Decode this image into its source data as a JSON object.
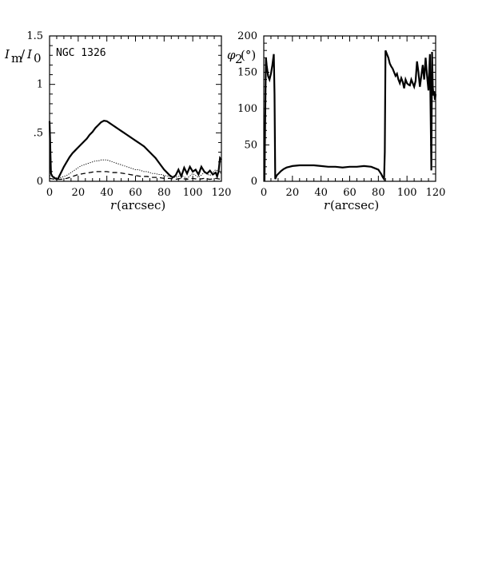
{
  "chart_data": [
    {
      "type": "line",
      "annotation": "NGC 1326",
      "ylabel_main": "I",
      "ylabel_sub_m": "m",
      "ylabel_slash": "/",
      "ylabel_sub_0": "0",
      "xlabel_var": "r",
      "xlabel_unit": "(arcsec)",
      "xlim": [
        0,
        120
      ],
      "ylim": [
        0,
        1.5
      ],
      "xticks": [
        0,
        20,
        40,
        60,
        80,
        100,
        120
      ],
      "xtick_labels": [
        "0",
        "20",
        "40",
        "60",
        "80",
        "100",
        "120"
      ],
      "yticks": [
        0,
        0.5,
        1,
        1.5
      ],
      "ytick_labels": [
        "0",
        ".5",
        "1",
        "1.5"
      ],
      "series": [
        {
          "style": "solid-thick",
          "x": [
            0,
            1,
            2,
            3,
            4,
            5,
            6,
            7,
            8,
            10,
            12,
            14,
            16,
            18,
            20,
            22,
            24,
            26,
            28,
            30,
            32,
            34,
            36,
            38,
            40,
            42,
            44,
            46,
            48,
            50,
            52,
            54,
            56,
            58,
            60,
            62,
            64,
            66,
            68,
            70,
            72,
            74,
            76,
            78,
            80,
            82,
            84,
            86,
            88,
            90,
            92,
            94,
            96,
            98,
            100,
            102,
            104,
            106,
            108,
            110,
            112,
            114,
            116,
            117,
            118,
            119,
            120
          ],
          "y": [
            0.62,
            0.08,
            0.05,
            0.04,
            0.03,
            0.02,
            0.03,
            0.06,
            0.09,
            0.15,
            0.2,
            0.25,
            0.29,
            0.32,
            0.35,
            0.38,
            0.41,
            0.44,
            0.48,
            0.51,
            0.55,
            0.58,
            0.61,
            0.625,
            0.62,
            0.6,
            0.58,
            0.56,
            0.54,
            0.52,
            0.5,
            0.48,
            0.46,
            0.44,
            0.42,
            0.4,
            0.38,
            0.36,
            0.33,
            0.3,
            0.27,
            0.24,
            0.2,
            0.16,
            0.12,
            0.09,
            0.06,
            0.04,
            0.06,
            0.12,
            0.05,
            0.14,
            0.08,
            0.15,
            0.1,
            0.12,
            0.07,
            0.15,
            0.1,
            0.08,
            0.11,
            0.07,
            0.09,
            0.05,
            0.1,
            0.24,
            0.22
          ]
        },
        {
          "style": "dotted",
          "x": [
            0,
            2,
            4,
            6,
            8,
            10,
            12,
            14,
            16,
            18,
            20,
            22,
            24,
            26,
            28,
            30,
            32,
            34,
            36,
            38,
            40,
            42,
            44,
            46,
            48,
            50,
            52,
            54,
            56,
            58,
            60,
            62,
            64,
            66,
            68,
            70,
            72,
            74,
            76,
            78,
            80,
            84,
            88,
            92,
            96,
            100,
            104,
            108,
            112,
            116,
            120
          ],
          "y": [
            0.06,
            0.05,
            0.04,
            0.03,
            0.04,
            0.05,
            0.06,
            0.08,
            0.1,
            0.12,
            0.14,
            0.16,
            0.17,
            0.18,
            0.19,
            0.2,
            0.21,
            0.21,
            0.22,
            0.22,
            0.22,
            0.21,
            0.2,
            0.19,
            0.18,
            0.17,
            0.16,
            0.15,
            0.14,
            0.13,
            0.12,
            0.12,
            0.11,
            0.1,
            0.1,
            0.09,
            0.08,
            0.08,
            0.07,
            0.07,
            0.06,
            0.05,
            0.04,
            0.06,
            0.03,
            0.08,
            0.04,
            0.09,
            0.06,
            0.12,
            0.08
          ]
        },
        {
          "style": "dashed",
          "x": [
            0,
            4,
            8,
            12,
            16,
            20,
            24,
            28,
            32,
            36,
            40,
            44,
            48,
            52,
            56,
            60,
            64,
            68,
            72,
            76,
            80,
            84,
            88,
            92,
            96,
            100,
            104,
            108,
            112,
            116,
            120
          ],
          "y": [
            0.03,
            0.02,
            0.02,
            0.03,
            0.05,
            0.07,
            0.08,
            0.09,
            0.1,
            0.1,
            0.1,
            0.09,
            0.09,
            0.08,
            0.07,
            0.06,
            0.05,
            0.05,
            0.04,
            0.04,
            0.03,
            0.03,
            0.02,
            0.03,
            0.02,
            0.03,
            0.02,
            0.03,
            0.02,
            0.03,
            0.02
          ]
        }
      ]
    },
    {
      "type": "line",
      "ylabel_var": "φ",
      "ylabel_sub": "2",
      "ylabel_unit": "(°)",
      "xlabel_var": "r",
      "xlabel_unit": "(arcsec)",
      "xlim": [
        0,
        120
      ],
      "ylim": [
        0,
        200
      ],
      "xticks": [
        0,
        20,
        40,
        60,
        80,
        100,
        120
      ],
      "xtick_labels": [
        "0",
        "20",
        "40",
        "60",
        "80",
        "100",
        "120"
      ],
      "yticks": [
        0,
        50,
        100,
        150,
        200
      ],
      "ytick_labels": [
        "0",
        "50",
        "100",
        "150",
        "200"
      ],
      "series": [
        {
          "style": "solid-thick",
          "x": [
            0.5,
            1,
            1.5,
            2,
            3,
            4,
            5,
            6,
            7,
            7.5,
            8,
            9,
            10,
            12,
            14,
            16,
            18,
            20,
            25,
            30,
            35,
            40,
            45,
            50,
            55,
            60,
            65,
            70,
            75,
            80,
            82,
            83,
            84,
            84.5,
            85,
            86,
            87,
            88,
            89,
            90,
            91,
            92,
            93,
            94,
            95,
            96,
            97,
            98,
            99,
            100,
            101,
            102,
            103,
            104,
            105,
            106,
            107,
            108,
            109,
            110,
            111,
            112,
            113,
            114,
            115,
            116,
            117,
            117.5,
            118,
            118.5,
            119,
            119.5,
            120
          ],
          "y": [
            0,
            90,
            170,
            160,
            145,
            140,
            148,
            160,
            175,
            120,
            3,
            8,
            10,
            14,
            17,
            19,
            20,
            21,
            22,
            22,
            22,
            21,
            20,
            20,
            19,
            20,
            20,
            21,
            20,
            16,
            10,
            6,
            3,
            40,
            180,
            175,
            170,
            162,
            158,
            155,
            150,
            145,
            148,
            140,
            135,
            142,
            137,
            128,
            140,
            135,
            133,
            132,
            140,
            135,
            130,
            138,
            165,
            150,
            130,
            145,
            160,
            140,
            170,
            145,
            125,
            175,
            15,
            178,
            130,
            118,
            124,
            112,
            120
          ]
        }
      ]
    }
  ]
}
